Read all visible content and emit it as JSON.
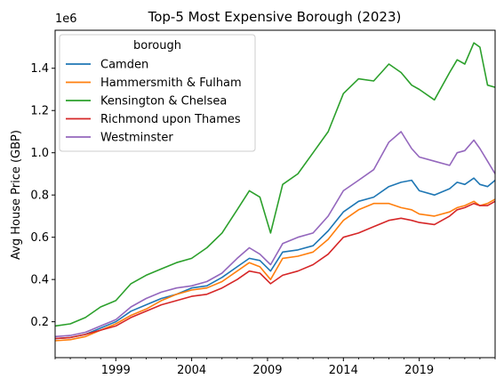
{
  "chart_data": {
    "type": "line",
    "title": "Top-5 Most Expensive Borough (2023)",
    "xlabel": "",
    "ylabel": "Avg House Price (GBP)",
    "y_offset_label": "1e6",
    "xlim": [
      1995.0,
      2024.0
    ],
    "ylim": [
      0.03,
      1.58
    ],
    "xticks": [
      1999,
      2004,
      2009,
      2014,
      2019
    ],
    "xtick_labels": [
      "1999",
      "2004",
      "2009",
      "2014",
      "2019"
    ],
    "yticks": [
      0.2,
      0.4,
      0.6,
      0.8,
      1.0,
      1.2,
      1.4
    ],
    "ytick_labels": [
      "0.2",
      "0.4",
      "0.6",
      "0.8",
      "1.0",
      "1.2",
      "1.4"
    ],
    "grid": false,
    "legend": {
      "title": "borough",
      "placement": "upper-left"
    },
    "x": [
      1995.0,
      1996.0,
      1997.0,
      1998.0,
      1999.0,
      2000.0,
      2001.0,
      2002.0,
      2003.0,
      2004.0,
      2005.0,
      2006.0,
      2007.0,
      2007.8,
      2008.5,
      2009.2,
      2010.0,
      2011.0,
      2012.0,
      2013.0,
      2014.0,
      2015.0,
      2016.0,
      2017.0,
      2017.8,
      2018.5,
      2019.0,
      2020.0,
      2021.0,
      2021.5,
      2022.0,
      2022.6,
      2023.0,
      2023.5,
      2024.0
    ],
    "series": [
      {
        "name": "Camden",
        "color": "#1f77b4",
        "values": [
          0.12,
          0.125,
          0.14,
          0.17,
          0.2,
          0.25,
          0.28,
          0.31,
          0.33,
          0.36,
          0.37,
          0.41,
          0.46,
          0.5,
          0.49,
          0.44,
          0.53,
          0.54,
          0.56,
          0.63,
          0.72,
          0.77,
          0.79,
          0.84,
          0.86,
          0.87,
          0.82,
          0.8,
          0.83,
          0.86,
          0.85,
          0.88,
          0.85,
          0.84,
          0.87
        ]
      },
      {
        "name": "Hammersmith & Fulham",
        "color": "#ff7f0e",
        "values": [
          0.11,
          0.115,
          0.13,
          0.16,
          0.19,
          0.23,
          0.26,
          0.3,
          0.33,
          0.35,
          0.36,
          0.39,
          0.44,
          0.48,
          0.46,
          0.4,
          0.5,
          0.51,
          0.53,
          0.59,
          0.68,
          0.73,
          0.76,
          0.76,
          0.74,
          0.73,
          0.71,
          0.7,
          0.72,
          0.74,
          0.75,
          0.77,
          0.75,
          0.76,
          0.78
        ]
      },
      {
        "name": "Kensington & Chelsea",
        "color": "#2ca02c",
        "values": [
          0.18,
          0.19,
          0.22,
          0.27,
          0.3,
          0.38,
          0.42,
          0.45,
          0.48,
          0.5,
          0.55,
          0.62,
          0.73,
          0.82,
          0.79,
          0.62,
          0.85,
          0.9,
          1.0,
          1.1,
          1.28,
          1.35,
          1.34,
          1.42,
          1.38,
          1.32,
          1.3,
          1.25,
          1.38,
          1.44,
          1.42,
          1.52,
          1.5,
          1.32,
          1.31
        ]
      },
      {
        "name": "Richmond upon Thames",
        "color": "#d62728",
        "values": [
          0.12,
          0.125,
          0.14,
          0.16,
          0.18,
          0.22,
          0.25,
          0.28,
          0.3,
          0.32,
          0.33,
          0.36,
          0.4,
          0.44,
          0.43,
          0.38,
          0.42,
          0.44,
          0.47,
          0.52,
          0.6,
          0.62,
          0.65,
          0.68,
          0.69,
          0.68,
          0.67,
          0.66,
          0.7,
          0.73,
          0.74,
          0.76,
          0.75,
          0.75,
          0.77
        ]
      },
      {
        "name": "Westminster",
        "color": "#9467bd",
        "values": [
          0.13,
          0.135,
          0.15,
          0.18,
          0.21,
          0.27,
          0.31,
          0.34,
          0.36,
          0.37,
          0.39,
          0.43,
          0.5,
          0.55,
          0.52,
          0.47,
          0.57,
          0.6,
          0.62,
          0.7,
          0.82,
          0.87,
          0.92,
          1.05,
          1.1,
          1.02,
          0.98,
          0.96,
          0.94,
          1.0,
          1.01,
          1.06,
          1.02,
          0.96,
          0.9
        ]
      }
    ]
  }
}
